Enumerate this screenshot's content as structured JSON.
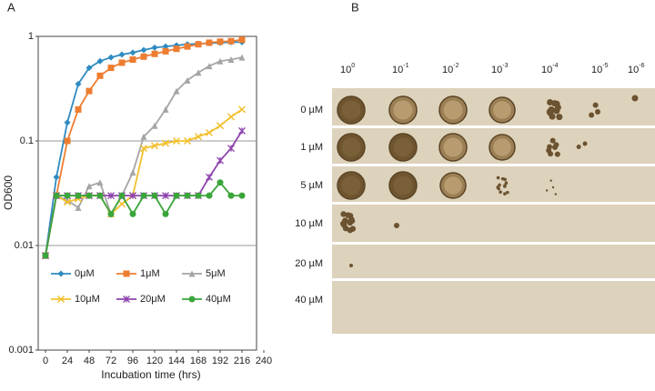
{
  "chart_data": {
    "type": "line",
    "panel_label": "A",
    "x_label": "Incubation time (hrs)",
    "y_label": "OD600",
    "x": [
      0,
      12,
      24,
      36,
      48,
      60,
      72,
      84,
      96,
      108,
      120,
      132,
      144,
      156,
      168,
      180,
      192,
      204,
      216
    ],
    "series": [
      {
        "name": "0μM",
        "color": "#2e8bc0",
        "marker": "diamond",
        "values": [
          0.008,
          0.045,
          0.15,
          0.35,
          0.5,
          0.58,
          0.63,
          0.67,
          0.7,
          0.74,
          0.78,
          0.8,
          0.82,
          0.84,
          0.85,
          0.86,
          0.87,
          0.88,
          0.88
        ]
      },
      {
        "name": "1μM",
        "color": "#ed7d31",
        "marker": "square",
        "values": [
          0.008,
          0.03,
          0.1,
          0.2,
          0.3,
          0.42,
          0.5,
          0.56,
          0.6,
          0.64,
          0.68,
          0.72,
          0.76,
          0.8,
          0.84,
          0.87,
          0.89,
          0.9,
          0.93
        ]
      },
      {
        "name": "5μM",
        "color": "#a5a5a5",
        "marker": "triangle",
        "values": [
          0.008,
          0.03,
          0.027,
          0.023,
          0.037,
          0.04,
          0.02,
          0.03,
          0.05,
          0.11,
          0.14,
          0.2,
          0.3,
          0.38,
          0.45,
          0.52,
          0.58,
          0.6,
          0.63
        ]
      },
      {
        "name": "10μM",
        "color": "#f2c02e",
        "marker": "x",
        "values": [
          0.008,
          0.03,
          0.026,
          0.028,
          0.03,
          0.03,
          0.02,
          0.025,
          0.03,
          0.085,
          0.09,
          0.095,
          0.1,
          0.1,
          0.11,
          0.12,
          0.14,
          0.17,
          0.2
        ]
      },
      {
        "name": "20μM",
        "color": "#8e44ad",
        "marker": "star",
        "values": [
          0.008,
          0.03,
          0.03,
          0.03,
          0.03,
          0.03,
          0.03,
          0.03,
          0.03,
          0.03,
          0.03,
          0.03,
          0.03,
          0.03,
          0.03,
          0.045,
          0.065,
          0.085,
          0.125
        ]
      },
      {
        "name": "40μM",
        "color": "#3aa53a",
        "marker": "circle",
        "values": [
          0.008,
          0.03,
          0.03,
          0.03,
          0.03,
          0.03,
          0.02,
          0.03,
          0.02,
          0.03,
          0.03,
          0.02,
          0.03,
          0.03,
          0.03,
          0.03,
          0.04,
          0.03,
          0.03
        ]
      }
    ],
    "xlim": [
      -8,
      240
    ],
    "xticks": [
      0,
      24,
      48,
      72,
      96,
      120,
      144,
      168,
      192,
      216,
      240
    ],
    "ylim": [
      0.001,
      1
    ],
    "yticks": [
      0.001,
      0.01,
      0.1,
      1
    ],
    "log_y": true,
    "grid": true,
    "legend": "lower center"
  },
  "panel_b": {
    "panel_label": "B",
    "columns": [
      {
        "base": "10",
        "exp": "0"
      },
      {
        "base": "10",
        "exp": "-1"
      },
      {
        "base": "10",
        "exp": "-2"
      },
      {
        "base": "10",
        "exp": "-3"
      },
      {
        "base": "10",
        "exp": "-4"
      },
      {
        "base": "10",
        "exp": "-5"
      },
      {
        "base": "10",
        "exp": "-6"
      }
    ],
    "rows": [
      "0 µM",
      "1 µM",
      "5 µM",
      "10 µM",
      "20 µM",
      "40 µM"
    ]
  }
}
